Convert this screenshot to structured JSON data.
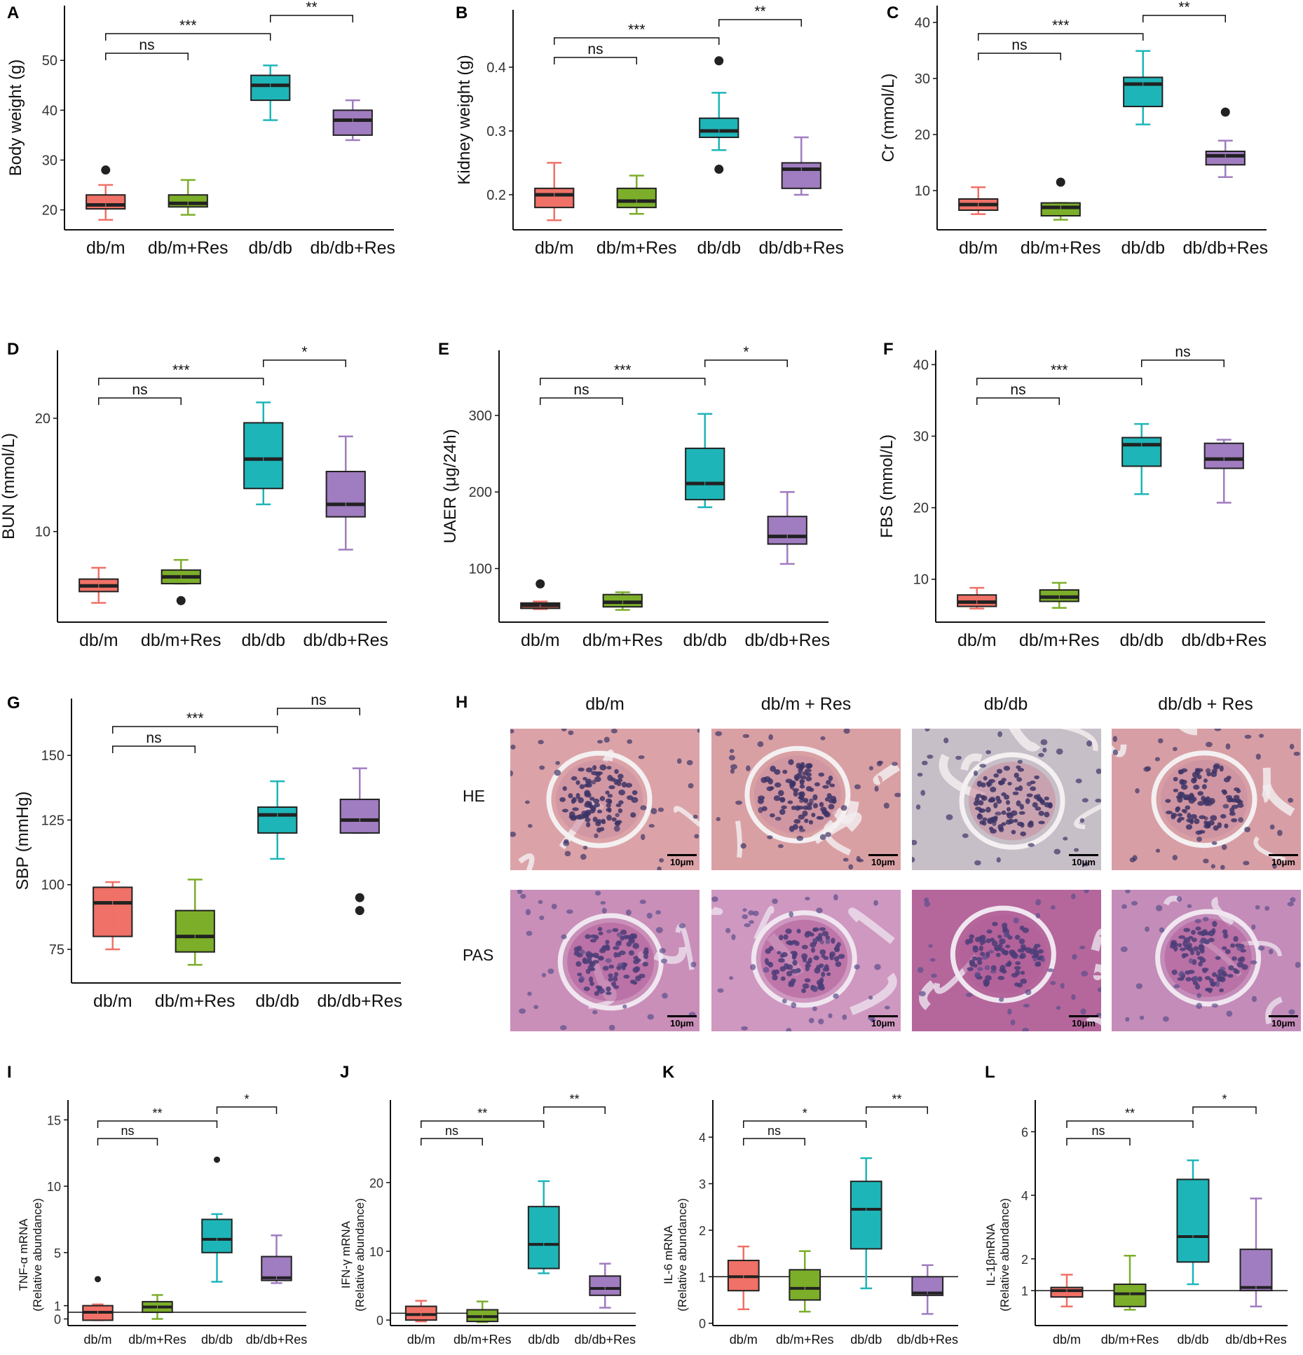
{
  "categories": [
    "db/m",
    "db/m+Res",
    "db/db",
    "db/db+Res"
  ],
  "colors": {
    "db/m": "#F07167",
    "db/m+Res": "#7CAE2A",
    "db/db": "#1EB5B8",
    "db/db+Res": "#A07CC0"
  },
  "chart_data": [
    {
      "panel": "A",
      "type": "box",
      "ylabel": "Body weight (g)",
      "ylim": [
        16,
        61
      ],
      "yticks": [
        20,
        30,
        40,
        50
      ],
      "boxes": [
        {
          "q1": 20.2,
          "median": 21,
          "q3": 23,
          "whisker_low": 18,
          "whisker_high": 25,
          "outliers": [
            28
          ]
        },
        {
          "q1": 20.6,
          "median": 21.3,
          "q3": 23,
          "whisker_low": 19,
          "whisker_high": 26,
          "outliers": []
        },
        {
          "q1": 42,
          "median": 45,
          "q3": 47,
          "whisker_low": 38,
          "whisker_high": 49,
          "outliers": []
        },
        {
          "q1": 35,
          "median": 38,
          "q3": 40,
          "whisker_low": 34,
          "whisker_high": 42,
          "outliers": []
        }
      ],
      "significance": [
        {
          "from": 0,
          "to": 1,
          "label": "ns"
        },
        {
          "from": 0,
          "to": 2,
          "label": "***"
        },
        {
          "from": 2,
          "to": 3,
          "label": "**"
        }
      ]
    },
    {
      "panel": "B",
      "type": "box",
      "ylabel": "Kidney weight (g)",
      "ylim": [
        0.145,
        0.49
      ],
      "yticks": [
        0.2,
        0.3,
        0.4
      ],
      "boxes": [
        {
          "q1": 0.18,
          "median": 0.2,
          "q3": 0.21,
          "whisker_low": 0.16,
          "whisker_high": 0.25,
          "outliers": []
        },
        {
          "q1": 0.18,
          "median": 0.19,
          "q3": 0.21,
          "whisker_low": 0.17,
          "whisker_high": 0.23,
          "outliers": []
        },
        {
          "q1": 0.29,
          "median": 0.3,
          "q3": 0.32,
          "whisker_low": 0.27,
          "whisker_high": 0.36,
          "outliers": [
            0.41,
            0.24
          ]
        },
        {
          "q1": 0.21,
          "median": 0.24,
          "q3": 0.25,
          "whisker_low": 0.2,
          "whisker_high": 0.29,
          "outliers": []
        }
      ],
      "significance": [
        {
          "from": 0,
          "to": 1,
          "label": "ns"
        },
        {
          "from": 0,
          "to": 2,
          "label": "***"
        },
        {
          "from": 2,
          "to": 3,
          "label": "**"
        }
      ]
    },
    {
      "panel": "C",
      "type": "box",
      "ylabel": "Cr (mmol/L)",
      "ylim": [
        3,
        43
      ],
      "yticks": [
        10,
        20,
        30,
        40
      ],
      "boxes": [
        {
          "q1": 6.5,
          "median": 7.5,
          "q3": 8.5,
          "whisker_low": 5.8,
          "whisker_high": 10.6,
          "outliers": []
        },
        {
          "q1": 5.5,
          "median": 7,
          "q3": 7.8,
          "whisker_low": 4.8,
          "whisker_high": 7.8,
          "outliers": [
            11.5
          ]
        },
        {
          "q1": 25,
          "median": 29,
          "q3": 30.2,
          "whisker_low": 21.8,
          "whisker_high": 34.9,
          "outliers": []
        },
        {
          "q1": 14.6,
          "median": 16.2,
          "q3": 17,
          "whisker_low": 12.4,
          "whisker_high": 18.9,
          "outliers": [
            24
          ]
        }
      ],
      "significance": [
        {
          "from": 0,
          "to": 1,
          "label": "ns"
        },
        {
          "from": 0,
          "to": 2,
          "label": "***"
        },
        {
          "from": 2,
          "to": 3,
          "label": "**"
        }
      ]
    },
    {
      "panel": "D",
      "type": "box",
      "ylabel": "BUN (mmol/L)",
      "ylim": [
        2,
        26
      ],
      "yticks": [
        10,
        20
      ],
      "boxes": [
        {
          "q1": 4.7,
          "median": 5.2,
          "q3": 5.8,
          "whisker_low": 3.7,
          "whisker_high": 6.8,
          "outliers": []
        },
        {
          "q1": 5.4,
          "median": 6,
          "q3": 6.6,
          "whisker_low": 5.4,
          "whisker_high": 7.5,
          "outliers": [
            3.9
          ]
        },
        {
          "q1": 13.8,
          "median": 16.4,
          "q3": 19.6,
          "whisker_low": 12.4,
          "whisker_high": 21.4,
          "outliers": []
        },
        {
          "q1": 11.3,
          "median": 12.4,
          "q3": 15.3,
          "whisker_low": 8.4,
          "whisker_high": 18.4,
          "outliers": []
        }
      ],
      "significance": [
        {
          "from": 0,
          "to": 1,
          "label": "ns"
        },
        {
          "from": 0,
          "to": 2,
          "label": "***"
        },
        {
          "from": 2,
          "to": 3,
          "label": "*"
        }
      ]
    },
    {
      "panel": "E",
      "type": "box",
      "ylabel": "UAER (μg/24h)",
      "ylim": [
        30,
        385
      ],
      "yticks": [
        100,
        200,
        300
      ],
      "boxes": [
        {
          "q1": 48,
          "median": 52,
          "q3": 55,
          "whisker_low": 47,
          "whisker_high": 57,
          "outliers": [
            80
          ]
        },
        {
          "q1": 50,
          "median": 56,
          "q3": 66,
          "whisker_low": 46,
          "whisker_high": 69,
          "outliers": []
        },
        {
          "q1": 190,
          "median": 211,
          "q3": 257,
          "whisker_low": 180,
          "whisker_high": 302,
          "outliers": []
        },
        {
          "q1": 132,
          "median": 142,
          "q3": 168,
          "whisker_low": 106,
          "whisker_high": 200,
          "outliers": []
        }
      ],
      "significance": [
        {
          "from": 0,
          "to": 1,
          "label": "ns"
        },
        {
          "from": 0,
          "to": 2,
          "label": "***"
        },
        {
          "from": 2,
          "to": 3,
          "label": "*"
        }
      ]
    },
    {
      "panel": "F",
      "type": "box",
      "ylabel": "FBS (mmol/L)",
      "ylim": [
        4,
        42
      ],
      "yticks": [
        10,
        20,
        30,
        40
      ],
      "boxes": [
        {
          "q1": 6.2,
          "median": 6.8,
          "q3": 7.8,
          "whisker_low": 5.9,
          "whisker_high": 8.8,
          "outliers": []
        },
        {
          "q1": 6.9,
          "median": 7.5,
          "q3": 8.5,
          "whisker_low": 6,
          "whisker_high": 9.5,
          "outliers": []
        },
        {
          "q1": 25.8,
          "median": 28.8,
          "q3": 29.8,
          "whisker_low": 21.9,
          "whisker_high": 31.7,
          "outliers": []
        },
        {
          "q1": 25.5,
          "median": 26.8,
          "q3": 29,
          "whisker_low": 20.7,
          "whisker_high": 29.5,
          "outliers": []
        }
      ],
      "significance": [
        {
          "from": 0,
          "to": 1,
          "label": "ns"
        },
        {
          "from": 0,
          "to": 2,
          "label": "***"
        },
        {
          "from": 2,
          "to": 3,
          "label": "ns"
        }
      ]
    },
    {
      "panel": "G",
      "type": "box",
      "ylabel": "SBP (mmHg)",
      "ylim": [
        62,
        172
      ],
      "yticks": [
        75,
        100,
        125,
        150
      ],
      "boxes": [
        {
          "q1": 80,
          "median": 93,
          "q3": 99,
          "whisker_low": 75,
          "whisker_high": 101,
          "outliers": []
        },
        {
          "q1": 74,
          "median": 80,
          "q3": 90,
          "whisker_low": 69,
          "whisker_high": 102,
          "outliers": []
        },
        {
          "q1": 120,
          "median": 127,
          "q3": 130,
          "whisker_low": 110,
          "whisker_high": 140,
          "outliers": []
        },
        {
          "q1": 120,
          "median": 125,
          "q3": 133,
          "whisker_low": 120,
          "whisker_high": 145,
          "outliers": [
            95,
            90
          ]
        }
      ],
      "significance": [
        {
          "from": 0,
          "to": 1,
          "label": "ns"
        },
        {
          "from": 0,
          "to": 2,
          "label": "***"
        },
        {
          "from": 2,
          "to": 3,
          "label": "ns"
        }
      ]
    },
    {
      "panel": "I",
      "type": "box",
      "ylabel": "TNF-α mRNA",
      "ylabel2": "(Relative abundance)",
      "ylim": [
        -0.5,
        16.5
      ],
      "yticks": [
        0,
        1,
        5,
        10,
        15
      ],
      "refline": 0.5,
      "boxes": [
        {
          "q1": -0.1,
          "median": 0.5,
          "q3": 1,
          "whisker_low": -0.1,
          "whisker_high": 1.1,
          "outliers": [
            3
          ]
        },
        {
          "q1": 0.5,
          "median": 0.9,
          "q3": 1.3,
          "whisker_low": 0,
          "whisker_high": 1.8,
          "outliers": []
        },
        {
          "q1": 5,
          "median": 6,
          "q3": 7.5,
          "whisker_low": 2.8,
          "whisker_high": 7.9,
          "outliers": [
            12
          ]
        },
        {
          "q1": 2.9,
          "median": 3.1,
          "q3": 4.7,
          "whisker_low": 2.7,
          "whisker_high": 6.3,
          "outliers": []
        }
      ],
      "significance": [
        {
          "from": 0,
          "to": 1,
          "label": "ns"
        },
        {
          "from": 0,
          "to": 2,
          "label": "**"
        },
        {
          "from": 2,
          "to": 3,
          "label": "*"
        }
      ]
    },
    {
      "panel": "J",
      "type": "box",
      "ylabel": "IFN-γ mRNA",
      "ylabel2": "(Relative abundance)",
      "ylim": [
        -0.8,
        32
      ],
      "yticks": [
        0,
        10,
        20
      ],
      "refline": 1,
      "boxes": [
        {
          "q1": 0,
          "median": 0.8,
          "q3": 2,
          "whisker_low": -0.2,
          "whisker_high": 2.8,
          "outliers": []
        },
        {
          "q1": -0.2,
          "median": 0.5,
          "q3": 1.5,
          "whisker_low": -0.3,
          "whisker_high": 2.7,
          "outliers": []
        },
        {
          "q1": 7.5,
          "median": 11,
          "q3": 16.5,
          "whisker_low": 6.8,
          "whisker_high": 20.2,
          "outliers": []
        },
        {
          "q1": 3.6,
          "median": 4.6,
          "q3": 6.4,
          "whisker_low": 1.8,
          "whisker_high": 8.2,
          "outliers": []
        }
      ],
      "significance": [
        {
          "from": 0,
          "to": 1,
          "label": "ns"
        },
        {
          "from": 0,
          "to": 2,
          "label": "**"
        },
        {
          "from": 2,
          "to": 3,
          "label": "**"
        }
      ]
    },
    {
      "panel": "K",
      "type": "box",
      "ylabel": "IL-6 mRNA",
      "ylabel2": "(Relative abundance)",
      "ylim": [
        -0.05,
        4.8
      ],
      "yticks": [
        0,
        1,
        2,
        3,
        4
      ],
      "refline": 1,
      "boxes": [
        {
          "q1": 0.7,
          "median": 1,
          "q3": 1.35,
          "whisker_low": 0.3,
          "whisker_high": 1.65,
          "outliers": []
        },
        {
          "q1": 0.5,
          "median": 0.75,
          "q3": 1.15,
          "whisker_low": 0.25,
          "whisker_high": 1.55,
          "outliers": []
        },
        {
          "q1": 1.6,
          "median": 2.45,
          "q3": 3.05,
          "whisker_low": 0.75,
          "whisker_high": 3.55,
          "outliers": []
        },
        {
          "q1": 0.6,
          "median": 0.65,
          "q3": 1,
          "whisker_low": 0.2,
          "whisker_high": 1.25,
          "outliers": []
        }
      ],
      "significance": [
        {
          "from": 0,
          "to": 1,
          "label": "ns"
        },
        {
          "from": 0,
          "to": 2,
          "label": "*"
        },
        {
          "from": 2,
          "to": 3,
          "label": "**"
        }
      ]
    },
    {
      "panel": "L",
      "type": "box",
      "ylabel": "IL-1βmRNA",
      "ylabel2": "(Relative abundance)",
      "ylim": [
        -0.1,
        7
      ],
      "yticks": [
        1,
        2,
        4,
        6
      ],
      "refline": 1,
      "boxes": [
        {
          "q1": 0.8,
          "median": 1,
          "q3": 1.1,
          "whisker_low": 0.5,
          "whisker_high": 1.5,
          "outliers": []
        },
        {
          "q1": 0.5,
          "median": 0.9,
          "q3": 1.2,
          "whisker_low": 0.4,
          "whisker_high": 2.1,
          "outliers": []
        },
        {
          "q1": 1.9,
          "median": 2.7,
          "q3": 4.5,
          "whisker_low": 1.2,
          "whisker_high": 5.1,
          "outliers": []
        },
        {
          "q1": 1,
          "median": 1.1,
          "q3": 2.3,
          "whisker_low": 0.5,
          "whisker_high": 3.9,
          "outliers": []
        }
      ],
      "significance": [
        {
          "from": 0,
          "to": 1,
          "label": "ns"
        },
        {
          "from": 0,
          "to": 2,
          "label": "**"
        },
        {
          "from": 2,
          "to": 3,
          "label": "*"
        }
      ]
    }
  ],
  "histology": {
    "panel": "H",
    "columns": [
      "db/m",
      "db/m + Res",
      "db/db",
      "db/db + Res"
    ],
    "rows": [
      "HE",
      "PAS"
    ],
    "scale": "10μm"
  }
}
